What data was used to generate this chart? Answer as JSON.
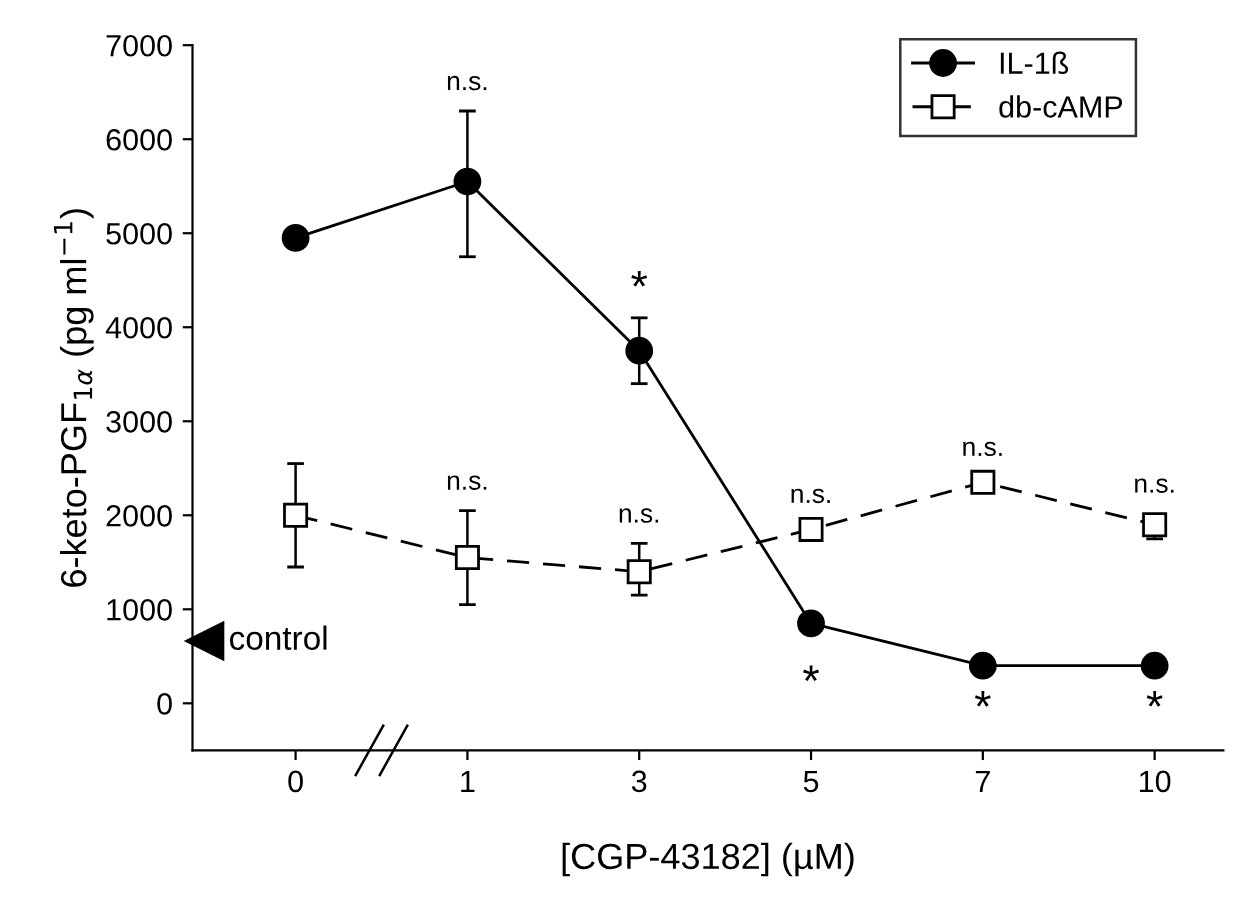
{
  "chart_data": {
    "type": "line",
    "xlabel": "[CGP-43182] (µM)",
    "ylabel": "6-keto-PGF$_{1α}$ (pg ml$^{−1}$)",
    "categories": [
      "0",
      "1",
      "3",
      "5",
      "7",
      "10"
    ],
    "series": [
      {
        "name": "IL-1ß",
        "color": "#000000",
        "marker": "circle",
        "line_style": "solid",
        "values": [
          4950,
          5550,
          3750,
          850,
          400,
          400
        ],
        "errors": [
          null,
          [
            4750,
            6300
          ],
          [
            3400,
            4100
          ],
          null,
          null,
          null
        ]
      },
      {
        "name": "db-cAMP",
        "color": "#000000",
        "marker": "square",
        "line_style": "dashed",
        "values": [
          2000,
          1550,
          1400,
          1850,
          2350,
          1900
        ],
        "errors": [
          [
            1450,
            2550
          ],
          [
            1050,
            2050
          ],
          [
            1150,
            1700
          ],
          null,
          null,
          [
            1750,
            2000
          ]
        ]
      }
    ],
    "ylim": [
      -500,
      7000
    ],
    "yticks": [
      0,
      1000,
      2000,
      3000,
      4000,
      5000,
      6000,
      7000
    ],
    "grid": false,
    "legend": "top right",
    "annotations": [
      "control",
      "n.s.",
      "*",
      "*",
      "*",
      "*",
      "n.s.",
      "n.s.",
      "n.s.",
      "n.s.",
      "n.s."
    ]
  }
}
